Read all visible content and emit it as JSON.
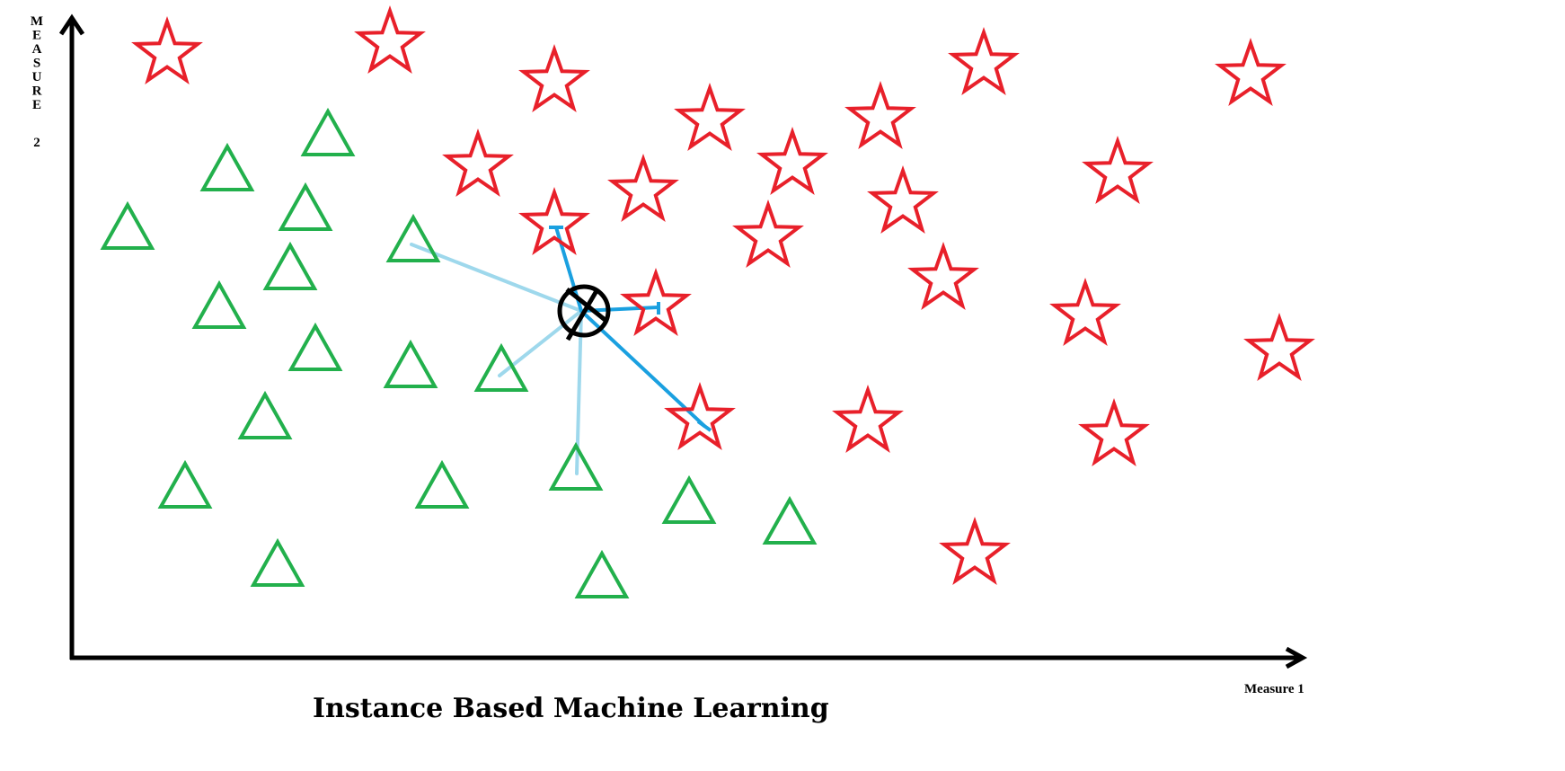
{
  "caption": "Instance Based Machine Learning",
  "x_axis_label": "Measure 1",
  "y_axis_label": "MEASURE 2",
  "colors": {
    "star": "#e8202a",
    "triangle": "#22b04c",
    "near_line": "#1aa0e0",
    "far_line": "#9ed8ec",
    "axis": "#000000",
    "query": "#000000"
  },
  "classes": [
    {
      "name": "star",
      "icon": "star-icon"
    },
    {
      "name": "triangle",
      "icon": "triangle-icon"
    }
  ],
  "query_marker": {
    "icon": "circled-x-icon"
  }
}
